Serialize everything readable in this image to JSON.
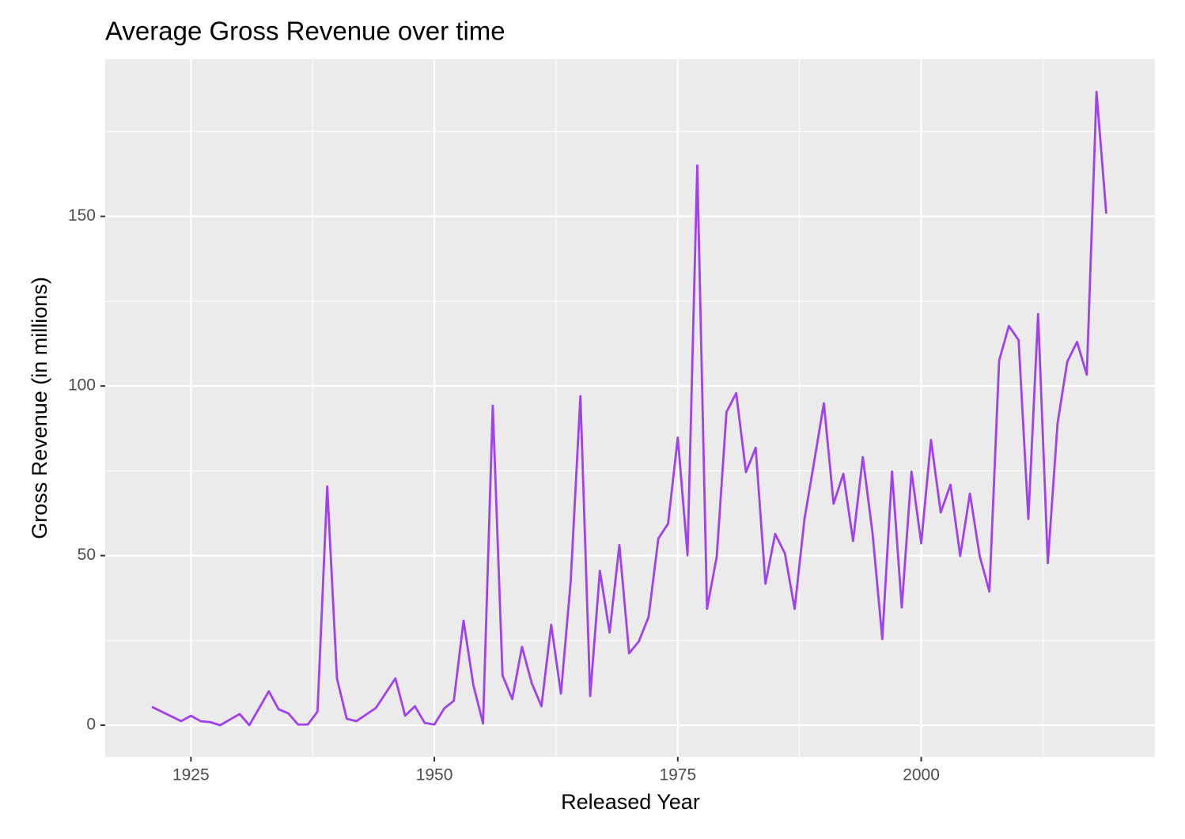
{
  "chart_data": {
    "type": "line",
    "title": "Average Gross Revenue over time",
    "x_label": "Released Year",
    "y_label": "Gross Revenue (in millions)",
    "x": [
      1921,
      1924,
      1925,
      1926,
      1927,
      1928,
      1930,
      1931,
      1933,
      1934,
      1935,
      1936,
      1937,
      1938,
      1939,
      1940,
      1941,
      1942,
      1944,
      1946,
      1947,
      1948,
      1949,
      1950,
      1951,
      1952,
      1953,
      1954,
      1955,
      1956,
      1957,
      1958,
      1959,
      1960,
      1961,
      1962,
      1963,
      1964,
      1965,
      1966,
      1967,
      1968,
      1969,
      1970,
      1971,
      1972,
      1973,
      1974,
      1975,
      1976,
      1977,
      1978,
      1979,
      1980,
      1981,
      1982,
      1983,
      1984,
      1985,
      1986,
      1987,
      1988,
      1989,
      1990,
      1991,
      1992,
      1993,
      1994,
      1995,
      1996,
      1997,
      1998,
      1999,
      2000,
      2001,
      2002,
      2003,
      2004,
      2005,
      2006,
      2007,
      2008,
      2009,
      2010,
      2011,
      2012,
      2013,
      2014,
      2015,
      2016,
      2017,
      2018,
      2019
    ],
    "series": [
      {
        "color": "#a040f0",
        "values": [
          5.4,
          1.2,
          2.8,
          1.2,
          0.9,
          0,
          3.3,
          0,
          10,
          4.7,
          3.5,
          0.2,
          0.2,
          4,
          70.4,
          13.8,
          1.9,
          1.2,
          5.1,
          13.8,
          2.8,
          5.6,
          0.7,
          0.2,
          4.9,
          7.2,
          30.8,
          11.9,
          0.5,
          94.2,
          14.7,
          7.7,
          23.1,
          12.4,
          5.6,
          29.6,
          9.3,
          42.4,
          97,
          8.6,
          45.5,
          27.3,
          53.1,
          21.2,
          24.7,
          31.9,
          55,
          59.4,
          84.8,
          50.1,
          165,
          34.3,
          49.7,
          92.3,
          97.9,
          74.6,
          81.8,
          41.7,
          56.4,
          50.6,
          34.3,
          60.6,
          77.6,
          94.9,
          65.3,
          74.1,
          54.3,
          79,
          56.6,
          25.4,
          74.8,
          34.7,
          74.8,
          53.6,
          84.1,
          62.7,
          70.9,
          49.9,
          68.3,
          49.9,
          39.4,
          107.5,
          117.7,
          113.5,
          60.8,
          121.2,
          47.8,
          89,
          107.2,
          113,
          103.3,
          186.7,
          150.8
        ]
      }
    ],
    "xlim": [
      1916.2,
      2024.0
    ],
    "ylim": [
      -9.3,
      196.3
    ],
    "xticks": [
      1925,
      1950,
      1975,
      2000
    ],
    "yticks": [
      0,
      50,
      100,
      150
    ],
    "x_minor_grid": [
      1937.5,
      1962.5,
      1987.5,
      2012.5
    ],
    "y_minor_grid": [
      25,
      75,
      125,
      175
    ],
    "grid": true
  }
}
